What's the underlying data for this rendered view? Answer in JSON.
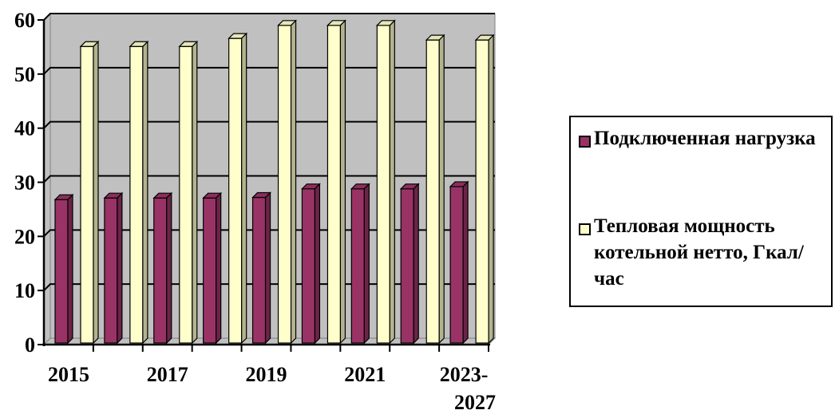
{
  "chart_data": {
    "type": "bar",
    "categories": [
      "2015",
      "",
      "2017",
      "",
      "2019",
      "",
      "2021",
      "",
      "2023-\n2027"
    ],
    "series": [
      {
        "name": "Подключенная нагрузка",
        "values": [
          26.5,
          26.8,
          26.8,
          26.8,
          26.9,
          28.5,
          28.5,
          28.5,
          28.9
        ],
        "color": "#993366"
      },
      {
        "name": "Тепловая мощность котельной нетто, Гкал/час",
        "values": [
          54.8,
          54.8,
          54.8,
          56.3,
          58.7,
          58.7,
          58.7,
          56.0,
          56.0
        ],
        "color": "#ffffcc"
      }
    ],
    "ylim": [
      0,
      60
    ],
    "yticks": [
      0,
      10,
      20,
      30,
      40,
      50,
      60
    ],
    "xlabel": "",
    "ylabel": "",
    "title": "",
    "grid": true,
    "legend": "right",
    "plot_background": "#c0c0c0",
    "style": "3d"
  }
}
